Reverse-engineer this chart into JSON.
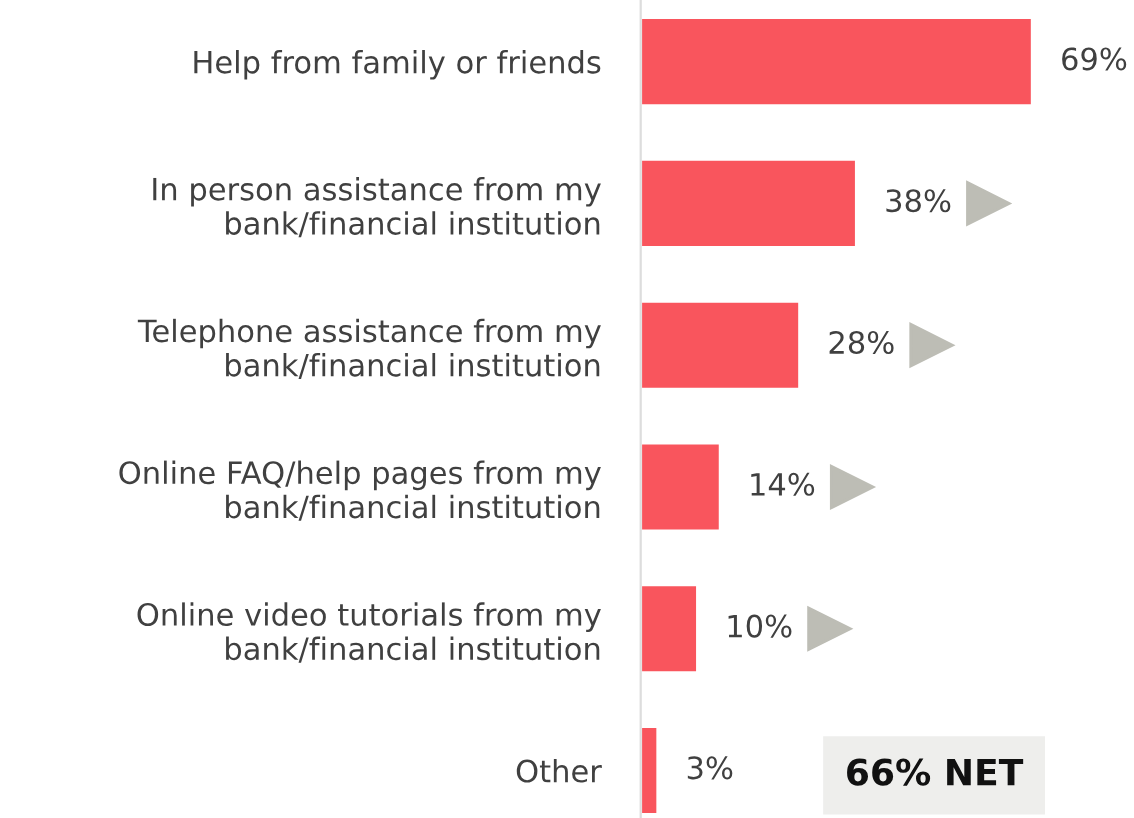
{
  "chart_data": {
    "type": "bar",
    "orientation": "horizontal",
    "relative": false,
    "categories": [
      "Help from family or friends",
      "In person assistance from my\nbank/financial institution",
      "Telephone assistance from my\nbank/financial institution",
      "Online FAQ/help pages from my\nbank/financial institution",
      "Online video tutorials from my\nbank/financial institution",
      "Other"
    ],
    "values": [
      69,
      38,
      28,
      14,
      10,
      3
    ],
    "value_labels": [
      "69%",
      "38%",
      "28%",
      "14%",
      "10%",
      "3%"
    ],
    "color": "#f9555d",
    "tick_labels": "y",
    "grid": false,
    "legend": false,
    "annotations": [
      "66% NET"
    ]
  }
}
